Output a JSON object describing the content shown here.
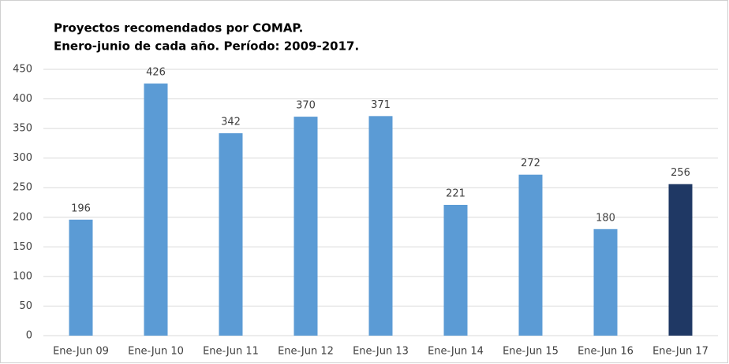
{
  "chart_data": {
    "type": "bar",
    "title": "Proyectos recomendados por COMAP.",
    "subtitle": "Enero-junio de cada año. Período: 2009-2017.",
    "categories": [
      "Ene-Jun 09",
      "Ene-Jun 10",
      "Ene-Jun 11",
      "Ene-Jun 12",
      "Ene-Jun 13",
      "Ene-Jun 14",
      "Ene-Jun 15",
      "Ene-Jun 16",
      "Ene-Jun 17"
    ],
    "values": [
      196,
      426,
      342,
      370,
      371,
      221,
      272,
      180,
      256
    ],
    "colors": [
      "#5b9bd5",
      "#5b9bd5",
      "#5b9bd5",
      "#5b9bd5",
      "#5b9bd5",
      "#5b9bd5",
      "#5b9bd5",
      "#5b9bd5",
      "#1f3864"
    ],
    "ylim": [
      0,
      450
    ],
    "yticks": [
      0,
      50,
      100,
      150,
      200,
      250,
      300,
      350,
      400,
      450
    ],
    "grid": true
  }
}
